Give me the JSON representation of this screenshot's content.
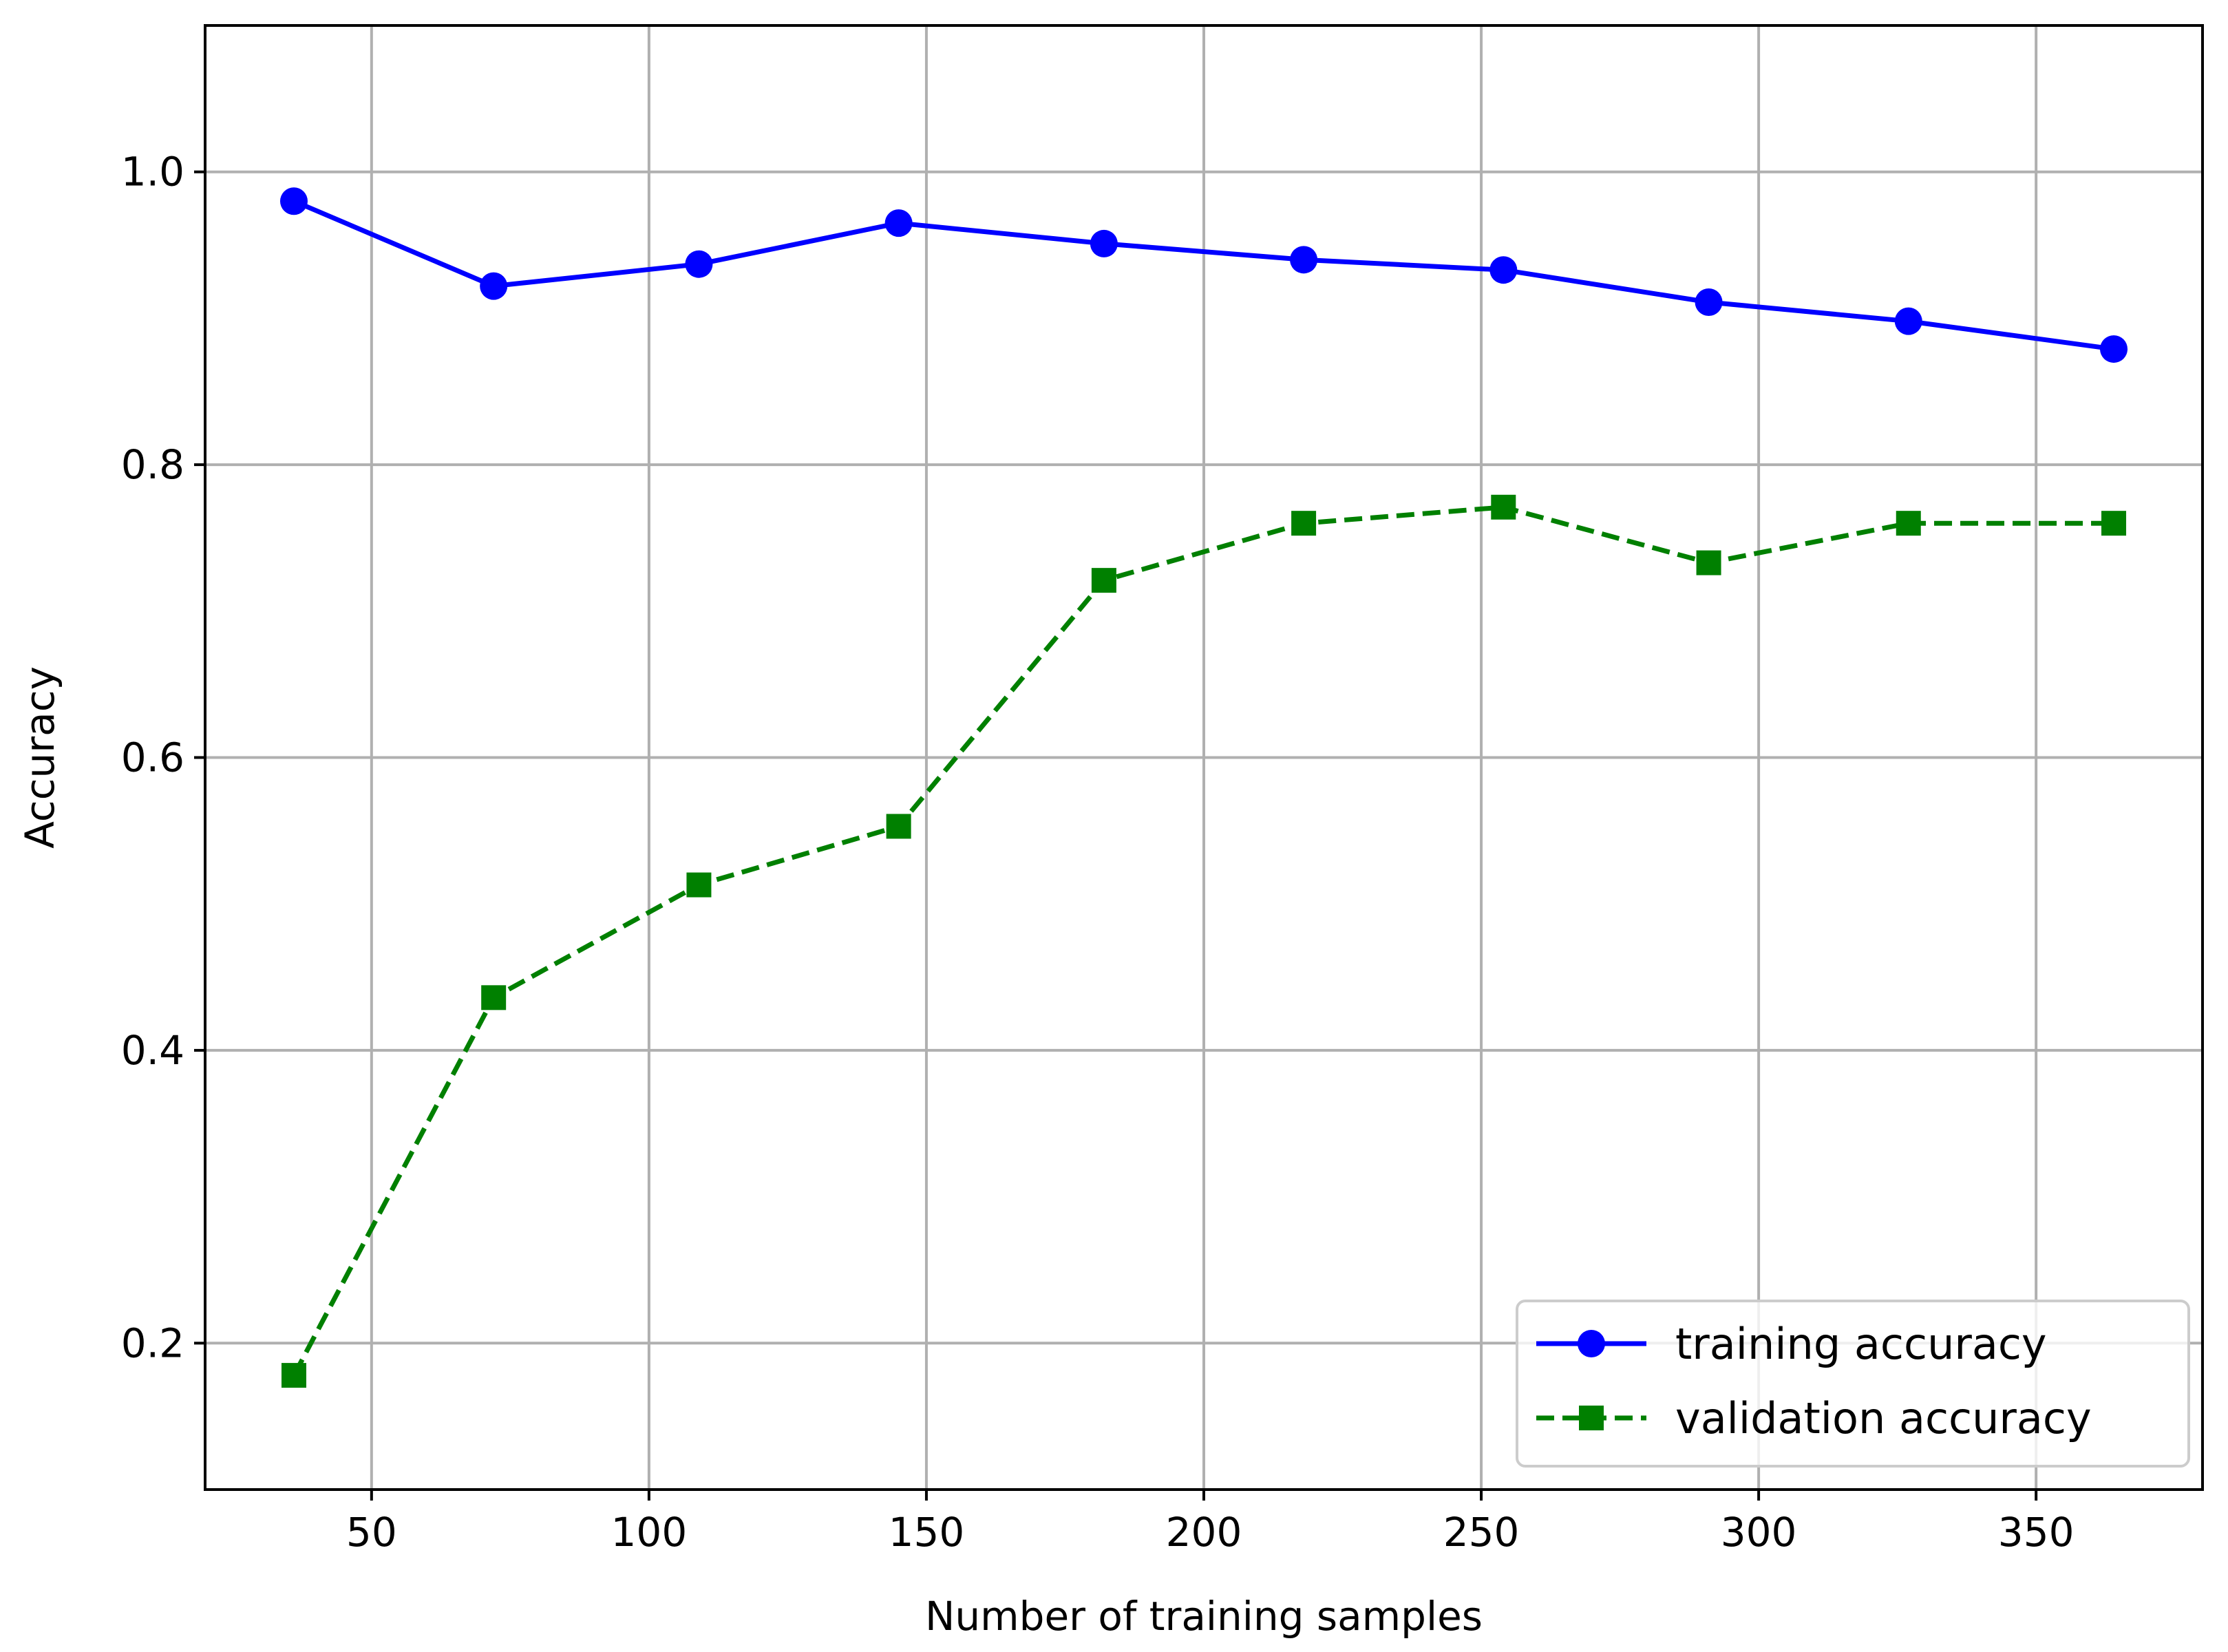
{
  "chart_data": {
    "type": "line",
    "title": "",
    "xlabel": "Number of training samples",
    "ylabel": "Accuracy",
    "xlim": [
      20,
      380
    ],
    "ylim": [
      0.1,
      1.1
    ],
    "xticks": [
      50,
      100,
      150,
      200,
      250,
      300,
      350
    ],
    "xtick_labels": [
      "50",
      "100",
      "150",
      "200",
      "250",
      "300",
      "350"
    ],
    "yticks": [
      0.2,
      0.4,
      0.6,
      0.8,
      1.0
    ],
    "ytick_labels": [
      "0.2",
      "0.4",
      "0.6",
      "0.8",
      "1.0"
    ],
    "grid": true,
    "legend_position": "bottom-right",
    "x": [
      36,
      72,
      109,
      145,
      182,
      218,
      254,
      291,
      327,
      364
    ],
    "series": [
      {
        "name": "training accuracy",
        "values": [
          0.98,
          0.922,
          0.937,
          0.965,
          0.951,
          0.94,
          0.933,
          0.911,
          0.898,
          0.879
        ],
        "color": "#0000ff",
        "line_style": "solid",
        "marker": "circle"
      },
      {
        "name": "validation accuracy",
        "values": [
          0.178,
          0.436,
          0.513,
          0.553,
          0.721,
          0.76,
          0.771,
          0.733,
          0.76,
          0.76
        ],
        "color": "#008000",
        "line_style": "dashed",
        "marker": "square"
      }
    ]
  }
}
